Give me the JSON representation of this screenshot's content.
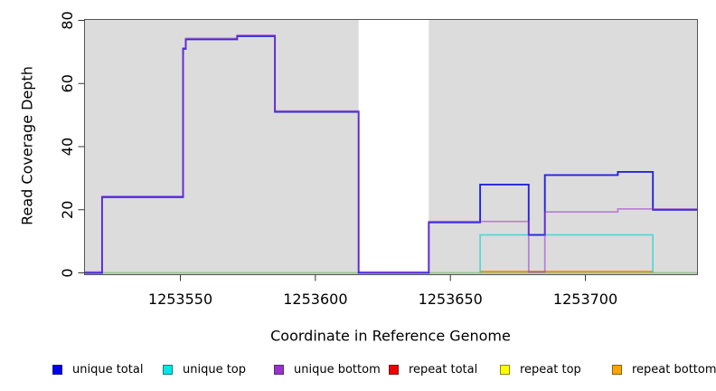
{
  "chart_data": {
    "type": "step-line",
    "title": "",
    "xlabel": "Coordinate in Reference Genome",
    "ylabel": "Read Coverage Depth",
    "xlim": [
      1253514.5,
      1253741.5
    ],
    "ylim": [
      0,
      80
    ],
    "x_ticks": {
      "values": [
        1253550,
        1253600,
        1253650,
        1253700
      ],
      "labels": [
        "1253550",
        "1253600",
        "1253650",
        "1253700"
      ]
    },
    "y_ticks": {
      "values": [
        0,
        20,
        40,
        60,
        80
      ],
      "labels": [
        "0",
        "20",
        "40",
        "60",
        "80"
      ]
    },
    "grid": false,
    "plot_background": "#dcdcdc",
    "masked_region": {
      "x_start": 1253616,
      "x_end": 1253642,
      "color": "#ffffff"
    },
    "series": [
      {
        "name": "repeat total",
        "line_color": "#dd2222",
        "opacity": 1,
        "width": 1.3,
        "dy": 0,
        "points": [
          [
            1253514.5,
            0
          ],
          [
            1253741.5,
            0
          ]
        ]
      },
      {
        "name": "repeat top",
        "line_color": "#90c990",
        "opacity": 1,
        "width": 1.6,
        "dy": 0,
        "points": [
          [
            1253514.5,
            0
          ],
          [
            1253741.5,
            0
          ]
        ]
      },
      {
        "name": "repeat bottom",
        "line_color": "#ff8c00",
        "opacity": 1,
        "width": 1.8,
        "dy": -1.5,
        "points": [
          [
            1253661,
            0
          ],
          [
            1253725,
            0
          ]
        ]
      },
      {
        "name": "unique top",
        "line_color": "#00d2d2",
        "opacity": 0.65,
        "width": 1.6,
        "dy": 0,
        "points": [
          [
            1253661,
            0
          ],
          [
            1253661,
            12
          ],
          [
            1253725,
            12
          ],
          [
            1253725,
            0
          ]
        ]
      },
      {
        "name": "unique total",
        "line_color": "#2424dd",
        "opacity": 1,
        "width": 1.9,
        "dy": 0,
        "points": [
          [
            1253514.5,
            0
          ],
          [
            1253521,
            0
          ],
          [
            1253521,
            24
          ],
          [
            1253551,
            24
          ],
          [
            1253551,
            71
          ],
          [
            1253552,
            71
          ],
          [
            1253552,
            74
          ],
          [
            1253571,
            74
          ],
          [
            1253571,
            75
          ],
          [
            1253585,
            75
          ],
          [
            1253585,
            51
          ],
          [
            1253616,
            51
          ],
          [
            1253616,
            0
          ],
          [
            1253642,
            0
          ],
          [
            1253642,
            16
          ],
          [
            1253661,
            16
          ],
          [
            1253661,
            28
          ],
          [
            1253679,
            28
          ],
          [
            1253679,
            12
          ],
          [
            1253685,
            12
          ],
          [
            1253685,
            31
          ],
          [
            1253712,
            31
          ],
          [
            1253712,
            32
          ],
          [
            1253725,
            32
          ],
          [
            1253725,
            20
          ],
          [
            1253741.5,
            20
          ]
        ]
      },
      {
        "name": "unique bottom",
        "line_color": "#9932cc",
        "opacity": 0.55,
        "width": 1.7,
        "dy": -1,
        "points": [
          [
            1253514.5,
            0
          ],
          [
            1253521,
            0
          ],
          [
            1253521,
            24
          ],
          [
            1253551,
            24
          ],
          [
            1253551,
            71
          ],
          [
            1253552,
            71
          ],
          [
            1253552,
            74
          ],
          [
            1253571,
            74
          ],
          [
            1253571,
            75
          ],
          [
            1253585,
            75
          ],
          [
            1253585,
            51
          ],
          [
            1253616,
            51
          ],
          [
            1253616,
            0
          ],
          [
            1253642,
            0
          ],
          [
            1253642,
            16
          ],
          [
            1253679,
            16
          ],
          [
            1253679,
            0
          ],
          [
            1253685,
            0
          ],
          [
            1253685,
            19
          ],
          [
            1253712,
            19
          ],
          [
            1253712,
            20
          ],
          [
            1253741.5,
            20
          ]
        ]
      }
    ],
    "legend": {
      "position": "bottom",
      "items": [
        {
          "label": "unique total",
          "color": "#0000ee"
        },
        {
          "label": "unique top",
          "color": "#00e6e6"
        },
        {
          "label": "unique bottom",
          "color": "#9932cc"
        },
        {
          "label": "repeat total",
          "color": "#ee0000"
        },
        {
          "label": "repeat top",
          "color": "#ffff00"
        },
        {
          "label": "repeat bottom",
          "color": "#ffa500"
        }
      ]
    }
  }
}
